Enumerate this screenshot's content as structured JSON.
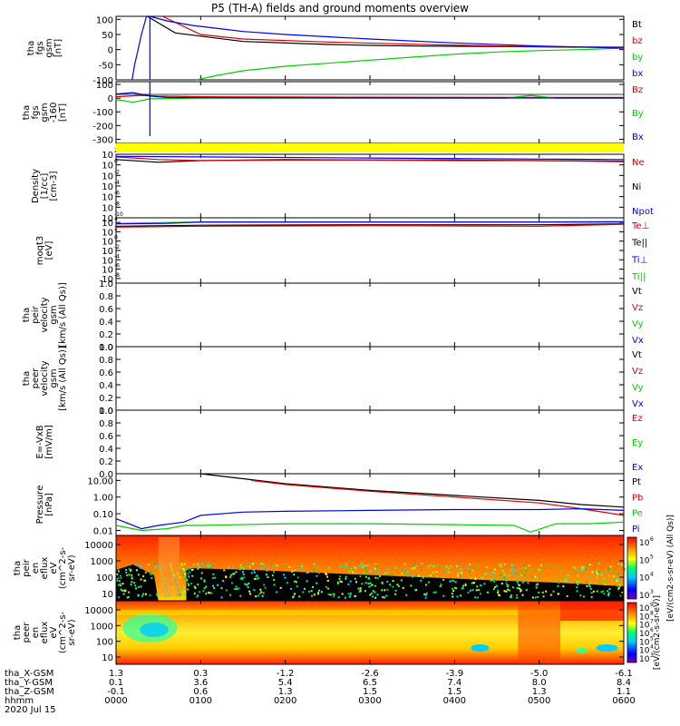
{
  "title": "P5 (TH-A) fields and ground moments overview",
  "colors": {
    "black": "#000000",
    "red": "#dd0000",
    "green": "#00cc00",
    "blue": "#0000ee",
    "yellow": "#ffff00"
  },
  "chart_data": [
    {
      "type": "line",
      "name": "panel-fgs-gsm",
      "ylabel": [
        "tha",
        "fgs",
        "gsm",
        "[nT]"
      ],
      "yticks": [
        "100",
        "50",
        "0",
        "-50",
        "-100"
      ],
      "ylim": [
        -100,
        110
      ],
      "legend": [
        {
          "label": "Bt",
          "color": "#000000"
        },
        {
          "label": "bz",
          "color": "#dd0000"
        },
        {
          "label": "by",
          "color": "#00cc00"
        },
        {
          "label": "bx",
          "color": "#0000ee"
        }
      ],
      "series": [
        {
          "name": "Bt",
          "color": "#000000",
          "points": [
            [
              0.37,
              110
            ],
            [
              0.7,
              55
            ],
            [
              1.5,
              27
            ],
            [
              2.5,
              17
            ],
            [
              3,
              14
            ],
            [
              3.5,
              12
            ],
            [
              4,
              11
            ],
            [
              4.5,
              10
            ],
            [
              5,
              9
            ],
            [
              5.5,
              8
            ],
            [
              6,
              8
            ]
          ]
        },
        {
          "name": "bz",
          "color": "#dd0000",
          "points": [
            [
              0.55,
              110
            ],
            [
              1.0,
              50
            ],
            [
              1.5,
              35
            ],
            [
              2.5,
              25
            ],
            [
              3.5,
              18
            ],
            [
              4.5,
              12
            ],
            [
              5.0,
              10
            ],
            [
              5.5,
              9
            ],
            [
              6,
              8
            ]
          ]
        },
        {
          "name": "by",
          "color": "#00cc00",
          "points": [
            [
              0.95,
              -100
            ],
            [
              1.2,
              -85
            ],
            [
              1.5,
              -70
            ],
            [
              2,
              -55
            ],
            [
              2.5,
              -45
            ],
            [
              3,
              -35
            ],
            [
              3.5,
              -25
            ],
            [
              4,
              -15
            ],
            [
              4.5,
              -8
            ],
            [
              5,
              -3
            ],
            [
              5.5,
              0
            ],
            [
              6,
              5
            ]
          ]
        },
        {
          "name": "bx",
          "color": "#0000ee",
          "points": [
            [
              0.19,
              -100
            ],
            [
              0.22,
              -50
            ],
            [
              0.26,
              0
            ],
            [
              0.3,
              50
            ],
            [
              0.36,
              110
            ],
            [
              0.4,
              110
            ],
            [
              0.6,
              95
            ],
            [
              0.9,
              80
            ],
            [
              1.5,
              60
            ],
            [
              2,
              50
            ],
            [
              3,
              35
            ],
            [
              4,
              22
            ],
            [
              5,
              12
            ],
            [
              6,
              5
            ]
          ]
        }
      ]
    },
    {
      "type": "line",
      "name": "panel-fgs-gsm-hires",
      "ylabel": [
        "tha",
        "fgs",
        "gsm",
        "-160",
        "[nT]"
      ],
      "yticks": [
        "100",
        "0",
        "-100",
        "-200",
        "-300"
      ],
      "ylim": [
        -330,
        120
      ],
      "legend": [
        {
          "label": "Bz",
          "color": "#dd0000"
        },
        {
          "label": "By",
          "color": "#00cc00"
        },
        {
          "label": "Bx",
          "color": "#0000ee"
        }
      ],
      "series": [
        {
          "name": "Bz",
          "color": "#dd0000",
          "points": [
            [
              0,
              10
            ],
            [
              0.3,
              20
            ],
            [
              0.5,
              15
            ],
            [
              1,
              10
            ],
            [
              2,
              8
            ],
            [
              3,
              7
            ],
            [
              4,
              6
            ],
            [
              5,
              5
            ],
            [
              6,
              5
            ]
          ]
        },
        {
          "name": "By",
          "color": "#00cc00",
          "points": [
            [
              0,
              -10
            ],
            [
              0.2,
              -30
            ],
            [
              0.4,
              -5
            ],
            [
              1,
              0
            ],
            [
              3,
              0
            ],
            [
              4.6,
              0
            ],
            [
              4.9,
              20
            ],
            [
              5.2,
              0
            ],
            [
              6,
              0
            ]
          ]
        },
        {
          "name": "Bx",
          "color": "#0000ee",
          "points": [
            [
              0,
              30
            ],
            [
              0.2,
              40
            ],
            [
              0.4,
              15
            ],
            [
              0.6,
              5
            ],
            [
              1,
              3
            ],
            [
              2,
              2
            ],
            [
              4,
              1
            ],
            [
              6,
              1
            ]
          ]
        }
      ]
    },
    {
      "type": "line",
      "name": "panel-density",
      "ylabel": [
        "Density",
        "[1/cc]",
        "[cm-3]"
      ],
      "yticks": [
        "10",
        "10",
        "10",
        "10",
        "10",
        "10",
        "10"
      ],
      "ytick_exponents": [
        "2",
        "0",
        "-2",
        "-4",
        "-6",
        "-8",
        "-10"
      ],
      "scale": "log",
      "ylim_exp": [
        -10,
        2
      ],
      "legend": [
        {
          "label": "Ne",
          "color": "#dd0000"
        },
        {
          "label": "Ni",
          "color": "#000000"
        },
        {
          "label": "Npot",
          "color": "#0000ee"
        }
      ],
      "series": [
        {
          "name": "Ni",
          "color": "#000000",
          "exp_points": [
            [
              0,
              1.0
            ],
            [
              0.5,
              0.5
            ],
            [
              1.0,
              0.8
            ],
            [
              2,
              1.0
            ],
            [
              3,
              0.9
            ],
            [
              4,
              0.9
            ],
            [
              5,
              0.8
            ],
            [
              6,
              0.7
            ]
          ]
        },
        {
          "name": "Ne",
          "color": "#dd0000",
          "exp_points": [
            [
              0,
              1.5
            ],
            [
              0.5,
              1.0
            ],
            [
              1,
              0.8
            ],
            [
              2,
              0.9
            ],
            [
              3,
              0.9
            ],
            [
              4,
              0.8
            ],
            [
              5,
              0.8
            ],
            [
              6,
              0.6
            ]
          ]
        },
        {
          "name": "Npot",
          "color": "#0000ee",
          "exp_points": [
            [
              0,
              1.6
            ],
            [
              1,
              1.5
            ],
            [
              3,
              1.3
            ],
            [
              5,
              1.1
            ],
            [
              6,
              1.0
            ]
          ]
        }
      ]
    },
    {
      "type": "line",
      "name": "panel-temperature",
      "ylabel": [
        "moqt3",
        "[eV]"
      ],
      "yticks": [
        "10",
        "10",
        "10",
        "10",
        "10",
        "10",
        "10"
      ],
      "ytick_exponents": [
        "4",
        "2",
        "0",
        "-2",
        "-4",
        "-6",
        "-8"
      ],
      "scale": "log",
      "ylim_exp": [
        -9,
        5
      ],
      "legend": [
        {
          "label": "Te⊥",
          "color": "#dd0000"
        },
        {
          "label": "Te||",
          "color": "#000000"
        },
        {
          "label": "Ti⊥",
          "color": "#0000ee"
        },
        {
          "label": "Ti||",
          "color": "#00cc00"
        }
      ],
      "series": [
        {
          "name": "Ti||",
          "color": "#00cc00",
          "exp_points": [
            [
              0,
              3.8
            ],
            [
              1,
              4.1
            ],
            [
              3,
              4.1
            ],
            [
              5,
              4.1
            ],
            [
              6,
              4.2
            ]
          ]
        },
        {
          "name": "Ti⊥",
          "color": "#0000ee",
          "exp_points": [
            [
              0,
              3.7
            ],
            [
              0.6,
              3.8
            ],
            [
              1,
              4.1
            ],
            [
              3,
              4.1
            ],
            [
              6,
              4.1
            ]
          ]
        },
        {
          "name": "Te||",
          "color": "#000000",
          "exp_points": [
            [
              0,
              3.2
            ],
            [
              1,
              3.4
            ],
            [
              3,
              3.5
            ],
            [
              5,
              3.5
            ],
            [
              6,
              3.7
            ]
          ]
        },
        {
          "name": "Te⊥",
          "color": "#dd0000",
          "exp_points": [
            [
              0,
              3.0
            ],
            [
              1,
              3.2
            ],
            [
              3,
              3.3
            ],
            [
              5,
              3.2
            ],
            [
              6,
              3.6
            ]
          ]
        }
      ]
    },
    {
      "type": "line",
      "name": "panel-peir-velocity",
      "ylabel": [
        "tha",
        "peir",
        "velocity",
        "gsm",
        "[km/s (All Qs)]"
      ],
      "yticks": [
        "1.0",
        "0.8",
        "0.6",
        "0.4",
        "0.2",
        "0.0"
      ],
      "ylim": [
        0,
        1
      ],
      "legend": [
        {
          "label": "Vt",
          "color": "#000000"
        },
        {
          "label": "Vz",
          "color": "#dd0000"
        },
        {
          "label": "Vy",
          "color": "#00cc00"
        },
        {
          "label": "Vx",
          "color": "#0000ee"
        }
      ],
      "series": []
    },
    {
      "type": "line",
      "name": "panel-peer-velocity",
      "ylabel": [
        "tha",
        "peer",
        "velocity",
        "gsm",
        "[km/s (All Qs)]"
      ],
      "yticks": [
        "1.0",
        "0.8",
        "0.6",
        "0.4",
        "0.2",
        "0.0"
      ],
      "ylim": [
        0,
        1
      ],
      "legend": [
        {
          "label": "Vt",
          "color": "#000000"
        },
        {
          "label": "Vz",
          "color": "#dd0000"
        },
        {
          "label": "Vy",
          "color": "#00cc00"
        },
        {
          "label": "Vx",
          "color": "#0000ee"
        }
      ],
      "series": []
    },
    {
      "type": "line",
      "name": "panel-efield",
      "ylabel": [
        "E=-VxB",
        "[mV/m]"
      ],
      "yticks": [
        "1.0",
        "0.8",
        "0.6",
        "0.4",
        "0.2",
        "0.0"
      ],
      "ylim": [
        0,
        1
      ],
      "legend": [
        {
          "label": "Ez",
          "color": "#dd0000"
        },
        {
          "label": "Ey",
          "color": "#00cc00"
        },
        {
          "label": "Ex",
          "color": "#0000ee"
        }
      ],
      "series": []
    },
    {
      "type": "line",
      "name": "panel-pressure",
      "ylabel": [
        "Pressure",
        "[nPa]"
      ],
      "yticks": [
        "10.00",
        "1.00",
        "0.10",
        "0.01"
      ],
      "scale": "log",
      "ylim_exp": [
        -2.3,
        1.4
      ],
      "legend": [
        {
          "label": "Pt",
          "color": "#000000"
        },
        {
          "label": "Pb",
          "color": "#dd0000"
        },
        {
          "label": "Pe",
          "color": "#00cc00"
        },
        {
          "label": "Pi",
          "color": "#0000ee"
        }
      ],
      "series": [
        {
          "name": "Pt",
          "color": "#000000",
          "exp_points": [
            [
              1.0,
              1.4
            ],
            [
              1.5,
              1.1
            ],
            [
              2,
              0.8
            ],
            [
              3,
              0.4
            ],
            [
              4,
              0.1
            ],
            [
              5,
              -0.2
            ],
            [
              5.5,
              -0.45
            ],
            [
              6,
              -0.6
            ]
          ]
        },
        {
          "name": "Pb",
          "color": "#dd0000",
          "exp_points": [
            [
              1.6,
              1.0
            ],
            [
              2,
              0.75
            ],
            [
              3,
              0.35
            ],
            [
              4,
              0.0
            ],
            [
              5,
              -0.35
            ],
            [
              5.5,
              -0.7
            ],
            [
              6,
              -1.1
            ]
          ]
        },
        {
          "name": "Pe",
          "color": "#00cc00",
          "exp_points": [
            [
              0,
              -1.7
            ],
            [
              0.3,
              -2.0
            ],
            [
              0.6,
              -1.9
            ],
            [
              0.8,
              -1.7
            ],
            [
              1,
              -1.7
            ],
            [
              2,
              -1.6
            ],
            [
              3,
              -1.6
            ],
            [
              4,
              -1.65
            ],
            [
              4.7,
              -1.7
            ],
            [
              4.9,
              -2.1
            ],
            [
              5.2,
              -1.6
            ],
            [
              5.6,
              -1.6
            ],
            [
              6,
              -1.5
            ]
          ]
        },
        {
          "name": "Pi",
          "color": "#0000ee",
          "exp_points": [
            [
              0,
              -1.3
            ],
            [
              0.3,
              -1.9
            ],
            [
              0.5,
              -1.7
            ],
            [
              0.8,
              -1.5
            ],
            [
              1,
              -1.1
            ],
            [
              1.5,
              -0.9
            ],
            [
              2,
              -0.85
            ],
            [
              3,
              -0.8
            ],
            [
              4,
              -0.75
            ],
            [
              5,
              -0.75
            ],
            [
              5.5,
              -0.7
            ],
            [
              6,
              -0.8
            ]
          ]
        }
      ]
    },
    {
      "type": "heatmap",
      "name": "panel-peir-spectrogram",
      "ylabel": [
        "tha",
        "peir",
        "en",
        "eflux",
        "eV",
        "(cm^2-s-",
        "sr-eV)"
      ],
      "yticks": [
        "10000",
        "1000",
        "100",
        "10"
      ],
      "colorbar_ticks": [
        "10",
        "10",
        "10",
        "10"
      ],
      "colorbar_exponents": [
        "6",
        "5",
        "4",
        "3"
      ],
      "colorbar_label": "[eV/(cm2-s-sr-eV) (All Qs)]"
    },
    {
      "type": "heatmap",
      "name": "panel-peer-spectrogram",
      "ylabel": [
        "tha",
        "peer",
        "en",
        "eflux",
        "eV",
        "(cm^2-s-",
        "sr-eV)"
      ],
      "yticks": [
        "10000",
        "1000",
        "100",
        "10"
      ],
      "colorbar_ticks": [
        "10",
        "10",
        "10",
        "10",
        "10",
        "10",
        "10"
      ],
      "colorbar_exponents": [
        "9",
        "8",
        "7",
        "6",
        "5",
        "4",
        "3"
      ],
      "colorbar_label": "[eV/(cm2-s-sr-eV)]"
    }
  ],
  "x_axis": {
    "range_hours": [
      0,
      6
    ],
    "rows": [
      {
        "label": "tha_X-GSM",
        "values": [
          "1.3",
          "0.3",
          "-1.2",
          "-2.6",
          "-3.9",
          "-5.0",
          "-6.1"
        ]
      },
      {
        "label": "tha_Y-GSM",
        "values": [
          "0.1",
          "3.6",
          "5.4",
          "6.5",
          "7.4",
          "8.0",
          "8.4"
        ]
      },
      {
        "label": "tha_Z-GSM",
        "values": [
          "-0.1",
          "0.6",
          "1.3",
          "1.5",
          "1.5",
          "1.3",
          "1.1"
        ]
      },
      {
        "label": "hhmm",
        "values": [
          "0000",
          "0100",
          "0200",
          "0300",
          "0400",
          "0500",
          "0600"
        ]
      }
    ],
    "date": "2020 Jul 15"
  }
}
